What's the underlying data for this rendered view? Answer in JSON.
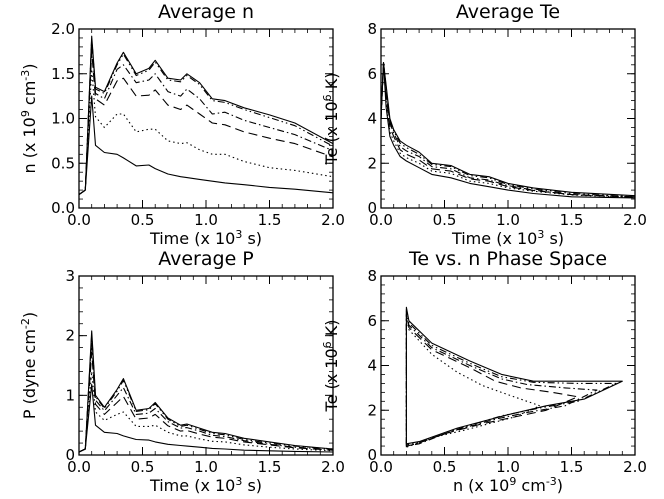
{
  "chart_data": [
    {
      "type": "line",
      "title": "Average n",
      "xlabel": {
        "pre": "Time (x 10",
        "sup": "3",
        "post": " s)"
      },
      "ylabel": {
        "pre": "n (x 10",
        "sup": "9",
        "mid": " cm",
        "sup2": "-3",
        "post": ")"
      },
      "xlim": [
        0,
        2.0
      ],
      "ylim": [
        0,
        2.0
      ],
      "xticks": [
        "0.0",
        "0.5",
        "1.0",
        "1.5",
        "2.0"
      ],
      "yticks": [
        "0.0",
        "0.5",
        "1.0",
        "1.5",
        "2.0"
      ],
      "series": [
        {
          "style": "solid",
          "x": [
            0,
            0.05,
            0.1,
            0.13,
            0.2,
            0.3,
            0.35,
            0.45,
            0.55,
            0.6,
            0.7,
            0.8,
            0.85,
            0.95,
            1.05,
            1.15,
            1.3,
            1.5,
            1.7,
            2.0
          ],
          "y": [
            0.15,
            0.2,
            1.92,
            1.35,
            1.3,
            1.62,
            1.74,
            1.5,
            1.56,
            1.65,
            1.45,
            1.43,
            1.5,
            1.4,
            1.22,
            1.2,
            1.12,
            1.04,
            0.95,
            0.72
          ]
        },
        {
          "style": "dash-dot-dot",
          "x": [
            0,
            0.05,
            0.1,
            0.13,
            0.2,
            0.3,
            0.35,
            0.45,
            0.55,
            0.6,
            0.7,
            0.8,
            0.85,
            0.95,
            1.05,
            1.15,
            1.3,
            1.5,
            1.7,
            2.0
          ],
          "y": [
            0.15,
            0.2,
            1.9,
            1.33,
            1.28,
            1.6,
            1.72,
            1.48,
            1.54,
            1.63,
            1.43,
            1.41,
            1.48,
            1.38,
            1.2,
            1.18,
            1.1,
            1.01,
            0.92,
            0.69
          ]
        },
        {
          "style": "dash-dot",
          "x": [
            0,
            0.05,
            0.1,
            0.13,
            0.2,
            0.3,
            0.35,
            0.45,
            0.55,
            0.6,
            0.7,
            0.8,
            0.85,
            0.95,
            1.05,
            1.15,
            1.3,
            1.5,
            1.7,
            2.0
          ],
          "y": [
            0.15,
            0.2,
            1.85,
            1.28,
            1.22,
            1.55,
            1.6,
            1.4,
            1.43,
            1.5,
            1.3,
            1.25,
            1.33,
            1.22,
            1.05,
            1.07,
            0.98,
            0.9,
            0.82,
            0.64
          ]
        },
        {
          "style": "long-dash",
          "x": [
            0,
            0.05,
            0.1,
            0.13,
            0.2,
            0.3,
            0.35,
            0.45,
            0.55,
            0.6,
            0.7,
            0.8,
            0.85,
            0.95,
            1.05,
            1.15,
            1.3,
            1.5,
            1.7,
            2.0
          ],
          "y": [
            0.15,
            0.2,
            1.75,
            1.22,
            1.15,
            1.42,
            1.45,
            1.25,
            1.26,
            1.32,
            1.15,
            1.1,
            1.15,
            1.05,
            0.95,
            0.93,
            0.85,
            0.78,
            0.72,
            0.57
          ]
        },
        {
          "style": "dotted",
          "x": [
            0,
            0.05,
            0.1,
            0.13,
            0.2,
            0.3,
            0.35,
            0.45,
            0.55,
            0.6,
            0.7,
            0.8,
            0.85,
            0.95,
            1.05,
            1.15,
            1.3,
            1.5,
            1.7,
            2.0
          ],
          "y": [
            0.15,
            0.2,
            1.55,
            1.02,
            0.9,
            1.05,
            1.05,
            0.85,
            0.88,
            0.88,
            0.75,
            0.72,
            0.73,
            0.65,
            0.6,
            0.6,
            0.52,
            0.45,
            0.42,
            0.35
          ]
        },
        {
          "style": "solid",
          "x": [
            0,
            0.05,
            0.1,
            0.13,
            0.2,
            0.3,
            0.35,
            0.45,
            0.55,
            0.6,
            0.7,
            0.8,
            0.85,
            0.95,
            1.05,
            1.15,
            1.3,
            1.5,
            1.7,
            2.0
          ],
          "y": [
            0.15,
            0.2,
            1.25,
            0.7,
            0.62,
            0.6,
            0.56,
            0.47,
            0.48,
            0.44,
            0.38,
            0.35,
            0.34,
            0.32,
            0.3,
            0.28,
            0.26,
            0.23,
            0.21,
            0.17
          ]
        }
      ]
    },
    {
      "type": "line",
      "title": "Average Te",
      "xlabel": {
        "pre": "Time (x 10",
        "sup": "3",
        "post": " s)"
      },
      "ylabel": {
        "pre": "Te (x 10",
        "sup": "6",
        "mid": " K)",
        "sup2": "",
        "post": ""
      },
      "xlim": [
        0,
        2.0
      ],
      "ylim": [
        0,
        8
      ],
      "xticks": [
        "0.0",
        "0.5",
        "1.0",
        "1.5",
        "2.0"
      ],
      "yticks": [
        "0",
        "2",
        "4",
        "6",
        "8"
      ],
      "series": [
        {
          "style": "solid",
          "x": [
            0,
            0.02,
            0.04,
            0.07,
            0.1,
            0.15,
            0.2,
            0.3,
            0.4,
            0.55,
            0.7,
            0.85,
            1.0,
            1.2,
            1.5,
            2.0
          ],
          "y": [
            4.0,
            6.5,
            5.5,
            4.0,
            3.5,
            3.0,
            2.8,
            2.5,
            2.0,
            1.9,
            1.5,
            1.4,
            1.1,
            0.9,
            0.7,
            0.55
          ]
        },
        {
          "style": "dash-dot-dot",
          "x": [
            0,
            0.02,
            0.04,
            0.07,
            0.1,
            0.15,
            0.2,
            0.3,
            0.4,
            0.55,
            0.7,
            0.85,
            1.0,
            1.2,
            1.5,
            2.0
          ],
          "y": [
            4.0,
            6.5,
            5.4,
            3.9,
            3.45,
            2.9,
            2.7,
            2.4,
            1.95,
            1.85,
            1.45,
            1.35,
            1.05,
            0.85,
            0.65,
            0.5
          ]
        },
        {
          "style": "dash-dot",
          "x": [
            0,
            0.02,
            0.04,
            0.07,
            0.1,
            0.15,
            0.2,
            0.3,
            0.4,
            0.55,
            0.7,
            0.85,
            1.0,
            1.2,
            1.5,
            2.0
          ],
          "y": [
            4.0,
            6.5,
            5.2,
            3.8,
            3.35,
            2.75,
            2.55,
            2.3,
            1.85,
            1.75,
            1.35,
            1.25,
            1.0,
            0.8,
            0.6,
            0.5
          ]
        },
        {
          "style": "long-dash",
          "x": [
            0,
            0.02,
            0.04,
            0.07,
            0.1,
            0.15,
            0.2,
            0.3,
            0.4,
            0.55,
            0.7,
            0.85,
            1.0,
            1.2,
            1.5,
            2.0
          ],
          "y": [
            4.0,
            6.5,
            5.0,
            3.6,
            3.2,
            2.6,
            2.4,
            2.15,
            1.75,
            1.65,
            1.3,
            1.2,
            0.95,
            0.78,
            0.6,
            0.48
          ]
        },
        {
          "style": "dotted",
          "x": [
            0,
            0.02,
            0.04,
            0.07,
            0.1,
            0.15,
            0.2,
            0.3,
            0.4,
            0.55,
            0.7,
            0.85,
            1.0,
            1.2,
            1.5,
            2.0
          ],
          "y": [
            4.0,
            6.5,
            4.8,
            3.4,
            3.0,
            2.45,
            2.25,
            2.0,
            1.65,
            1.55,
            1.2,
            1.1,
            0.9,
            0.75,
            0.58,
            0.47
          ]
        },
        {
          "style": "solid",
          "x": [
            0,
            0.02,
            0.04,
            0.07,
            0.1,
            0.15,
            0.2,
            0.3,
            0.4,
            0.55,
            0.7,
            0.85,
            1.0,
            1.2,
            1.5,
            2.0
          ],
          "y": [
            4.0,
            6.5,
            4.5,
            3.2,
            2.8,
            2.3,
            2.1,
            1.8,
            1.5,
            1.35,
            1.1,
            0.95,
            0.8,
            0.65,
            0.5,
            0.45
          ]
        }
      ]
    },
    {
      "type": "line",
      "title": "Average P",
      "xlabel": {
        "pre": "Time (x 10",
        "sup": "3",
        "post": " s)"
      },
      "ylabel": {
        "pre": "P (dyne cm",
        "sup": "-2",
        "mid": ")",
        "sup2": "",
        "post": ""
      },
      "xlim": [
        0,
        2.0
      ],
      "ylim": [
        0,
        3
      ],
      "xticks": [
        "0.0",
        "0.5",
        "1.0",
        "1.5",
        "2.0"
      ],
      "yticks": [
        "0",
        "1",
        "2",
        "3"
      ],
      "series": [
        {
          "style": "solid",
          "x": [
            0,
            0.05,
            0.1,
            0.13,
            0.2,
            0.3,
            0.35,
            0.45,
            0.55,
            0.6,
            0.7,
            0.8,
            0.85,
            0.95,
            1.05,
            1.15,
            1.3,
            1.5,
            1.7,
            2.0
          ],
          "y": [
            0.05,
            0.1,
            2.08,
            1.0,
            0.8,
            1.1,
            1.28,
            0.75,
            0.78,
            0.88,
            0.62,
            0.5,
            0.52,
            0.45,
            0.38,
            0.36,
            0.28,
            0.22,
            0.16,
            0.1
          ]
        },
        {
          "style": "dash-dot-dot",
          "x": [
            0,
            0.05,
            0.1,
            0.13,
            0.2,
            0.3,
            0.35,
            0.45,
            0.55,
            0.6,
            0.7,
            0.8,
            0.85,
            0.95,
            1.05,
            1.15,
            1.3,
            1.5,
            1.7,
            2.0
          ],
          "y": [
            0.05,
            0.1,
            2.02,
            0.98,
            0.78,
            1.07,
            1.25,
            0.73,
            0.76,
            0.86,
            0.6,
            0.48,
            0.5,
            0.43,
            0.36,
            0.34,
            0.26,
            0.2,
            0.15,
            0.1
          ]
        },
        {
          "style": "dash-dot",
          "x": [
            0,
            0.05,
            0.1,
            0.13,
            0.2,
            0.3,
            0.35,
            0.45,
            0.55,
            0.6,
            0.7,
            0.8,
            0.85,
            0.95,
            1.05,
            1.15,
            1.3,
            1.5,
            1.7,
            2.0
          ],
          "y": [
            0.05,
            0.1,
            1.9,
            0.92,
            0.74,
            1.0,
            1.13,
            0.68,
            0.7,
            0.78,
            0.56,
            0.45,
            0.46,
            0.4,
            0.33,
            0.31,
            0.24,
            0.18,
            0.13,
            0.09
          ]
        },
        {
          "style": "long-dash",
          "x": [
            0,
            0.05,
            0.1,
            0.13,
            0.2,
            0.3,
            0.35,
            0.45,
            0.55,
            0.6,
            0.7,
            0.8,
            0.85,
            0.95,
            1.05,
            1.15,
            1.3,
            1.5,
            1.7,
            2.0
          ],
          "y": [
            0.05,
            0.1,
            1.72,
            0.85,
            0.68,
            0.88,
            0.98,
            0.6,
            0.62,
            0.68,
            0.49,
            0.4,
            0.41,
            0.35,
            0.3,
            0.28,
            0.22,
            0.17,
            0.12,
            0.08
          ]
        },
        {
          "style": "dotted",
          "x": [
            0,
            0.05,
            0.1,
            0.13,
            0.2,
            0.3,
            0.35,
            0.45,
            0.55,
            0.6,
            0.7,
            0.8,
            0.85,
            0.95,
            1.05,
            1.15,
            1.3,
            1.5,
            1.7,
            2.0
          ],
          "y": [
            0.05,
            0.1,
            1.4,
            0.72,
            0.58,
            0.68,
            0.72,
            0.48,
            0.48,
            0.5,
            0.38,
            0.32,
            0.32,
            0.27,
            0.23,
            0.22,
            0.17,
            0.13,
            0.1,
            0.07
          ]
        },
        {
          "style": "solid",
          "x": [
            0,
            0.05,
            0.1,
            0.13,
            0.2,
            0.3,
            0.35,
            0.45,
            0.55,
            0.6,
            0.7,
            0.8,
            0.85,
            0.95,
            1.05,
            1.15,
            1.3,
            1.5,
            1.7,
            2.0
          ],
          "y": [
            0.05,
            0.1,
            1.18,
            0.5,
            0.38,
            0.36,
            0.32,
            0.26,
            0.25,
            0.22,
            0.18,
            0.16,
            0.15,
            0.13,
            0.11,
            0.1,
            0.08,
            0.07,
            0.06,
            0.05
          ]
        }
      ]
    },
    {
      "type": "line",
      "title": "Te vs. n Phase Space",
      "xlabel": {
        "pre": "n (x 10",
        "sup": "9",
        "post": " cm",
        "sup2": "-3",
        "post2": ")"
      },
      "ylabel": {
        "pre": "Te (x 10",
        "sup": "6",
        "mid": " K)",
        "sup2": "",
        "post": ""
      },
      "xlim": [
        0,
        2.0
      ],
      "ylim": [
        0,
        8
      ],
      "xticks": [
        "0.0",
        "0.5",
        "1.0",
        "1.5",
        "2.0"
      ],
      "yticks": [
        "0",
        "2",
        "4",
        "6",
        "8"
      ],
      "series": [
        {
          "style": "solid",
          "x": [
            0.2,
            0.2,
            0.22,
            0.4,
            0.7,
            0.95,
            1.2,
            1.6,
            1.9,
            1.6,
            1.3,
            1.0,
            0.6,
            0.3,
            0.2
          ],
          "y": [
            0.5,
            6.6,
            6.0,
            5.0,
            4.2,
            3.6,
            3.3,
            3.3,
            3.3,
            2.5,
            2.2,
            1.8,
            1.2,
            0.6,
            0.5
          ]
        },
        {
          "style": "dash-dot-dot",
          "x": [
            0.2,
            0.2,
            0.22,
            0.4,
            0.7,
            0.95,
            1.2,
            1.55,
            1.85,
            1.55,
            1.25,
            0.95,
            0.6,
            0.3,
            0.2
          ],
          "y": [
            0.45,
            6.5,
            5.9,
            4.9,
            4.1,
            3.5,
            3.25,
            3.2,
            3.2,
            2.4,
            2.1,
            1.75,
            1.15,
            0.55,
            0.45
          ]
        },
        {
          "style": "dash-dot",
          "x": [
            0.2,
            0.2,
            0.22,
            0.4,
            0.7,
            0.95,
            1.15,
            1.45,
            1.7,
            1.45,
            1.15,
            0.9,
            0.55,
            0.3,
            0.2
          ],
          "y": [
            0.4,
            6.4,
            5.8,
            4.8,
            4.0,
            3.4,
            3.15,
            3.0,
            2.9,
            2.2,
            1.9,
            1.6,
            1.05,
            0.5,
            0.4
          ]
        },
        {
          "style": "long-dash",
          "x": [
            0.2,
            0.2,
            0.22,
            0.4,
            0.7,
            0.9,
            1.1,
            1.35,
            1.55,
            1.3,
            1.05,
            0.8,
            0.5,
            0.28,
            0.2
          ],
          "y": [
            0.4,
            6.3,
            5.7,
            4.7,
            3.9,
            3.3,
            3.0,
            2.8,
            2.6,
            2.0,
            1.7,
            1.4,
            0.95,
            0.5,
            0.4
          ]
        },
        {
          "style": "dotted",
          "x": [
            0.2,
            0.2,
            0.22,
            0.4,
            0.6,
            0.8,
            0.95,
            1.1,
            1.25,
            1.05,
            0.85,
            0.65,
            0.42,
            0.25,
            0.2
          ],
          "y": [
            0.35,
            6.2,
            5.6,
            4.5,
            3.7,
            3.1,
            2.8,
            2.5,
            2.2,
            1.7,
            1.4,
            1.1,
            0.8,
            0.45,
            0.35
          ]
        }
      ]
    }
  ]
}
